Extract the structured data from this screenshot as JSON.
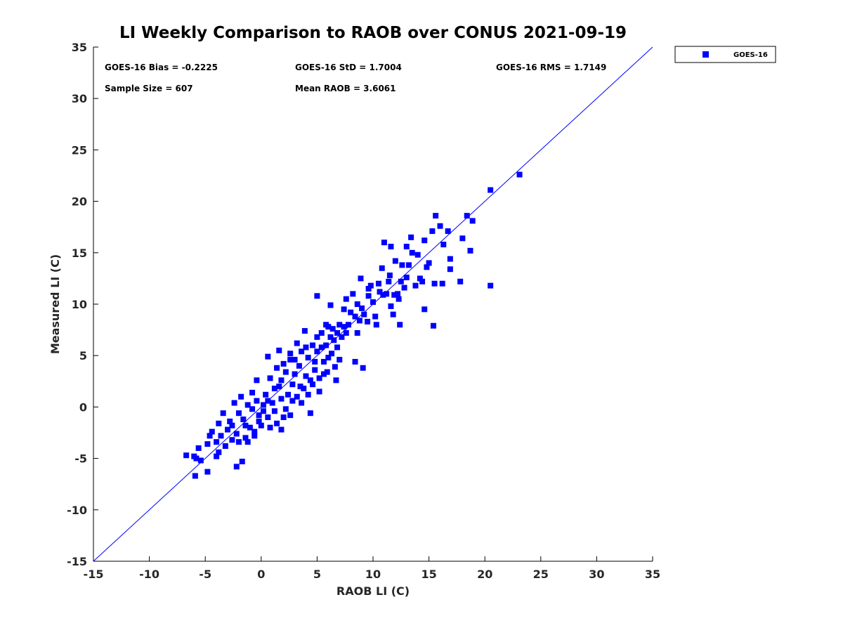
{
  "chart_data": {
    "type": "scatter",
    "title": "LI Weekly Comparison to RAOB over CONUS 2021-09-19",
    "xlabel": "RAOB LI (C)",
    "ylabel": "Measured LI (C)",
    "xlim": [
      -15,
      35
    ],
    "ylim": [
      -15,
      35
    ],
    "xticks": [
      -15,
      -10,
      -5,
      0,
      5,
      10,
      15,
      20,
      25,
      30,
      35
    ],
    "yticks": [
      -15,
      -10,
      -5,
      0,
      5,
      10,
      15,
      20,
      25,
      30,
      35
    ],
    "grid": false,
    "legend": {
      "position": "outside-top-right",
      "entries": [
        "GOES-16"
      ]
    },
    "reference_line": "y = x",
    "colors": {
      "series": "#0000ff",
      "line": "#0000ff",
      "axis": "#000000"
    },
    "stats": [
      "GOES-16 Bias = -0.2225",
      "GOES-16 StD = 1.7004",
      "GOES-16 RMS = 1.7149",
      "Sample Size = 607",
      "Mean RAOB = 3.6061"
    ],
    "series": [
      {
        "name": "GOES-16",
        "note": "approximate subset of 607 points",
        "points": [
          [
            23.1,
            22.6
          ],
          [
            20.5,
            21.1
          ],
          [
            20.5,
            11.8
          ],
          [
            18.4,
            18.6
          ],
          [
            18.9,
            18.1
          ],
          [
            18.7,
            15.2
          ],
          [
            18.0,
            16.4
          ],
          [
            17.8,
            12.2
          ],
          [
            15.6,
            18.6
          ],
          [
            16.0,
            17.6
          ],
          [
            16.7,
            17.1
          ],
          [
            16.3,
            15.8
          ],
          [
            16.9,
            14.4
          ],
          [
            16.9,
            13.4
          ],
          [
            16.2,
            12.0
          ],
          [
            15.4,
            7.9
          ],
          [
            14.6,
            9.5
          ],
          [
            14.6,
            16.2
          ],
          [
            15.3,
            17.1
          ],
          [
            13.4,
            16.5
          ],
          [
            11.0,
            16.0
          ],
          [
            11.6,
            15.6
          ],
          [
            13.0,
            15.6
          ],
          [
            11.6,
            9.8
          ],
          [
            12.4,
            8.0
          ],
          [
            10.3,
            8.0
          ],
          [
            9.1,
            3.8
          ],
          [
            8.4,
            4.4
          ],
          [
            6.7,
            2.6
          ],
          [
            5.0,
            10.8
          ],
          [
            6.2,
            9.9
          ],
          [
            0.6,
            4.9
          ],
          [
            -1.7,
            -5.3
          ],
          [
            -2.2,
            -5.8
          ],
          [
            -4.8,
            -6.3
          ],
          [
            -5.9,
            -6.7
          ],
          [
            -6.7,
            -4.7
          ],
          [
            4.4,
            -0.6
          ],
          [
            15.0,
            14.0
          ],
          [
            14.2,
            12.5
          ],
          [
            15.5,
            12.0
          ],
          [
            14.8,
            13.6
          ],
          [
            13.2,
            13.8
          ],
          [
            12.5,
            12.2
          ],
          [
            13.8,
            11.8
          ],
          [
            12.0,
            14.2
          ],
          [
            11.2,
            11.0
          ],
          [
            12.3,
            10.5
          ],
          [
            11.8,
            9.0
          ],
          [
            10.5,
            12.0
          ],
          [
            10.8,
            13.5
          ],
          [
            9.6,
            11.5
          ],
          [
            10.0,
            10.2
          ],
          [
            9.2,
            9.0
          ],
          [
            8.6,
            10.0
          ],
          [
            8.0,
            9.2
          ],
          [
            8.8,
            8.4
          ],
          [
            7.4,
            9.5
          ],
          [
            8.2,
            11.0
          ],
          [
            9.8,
            11.8
          ],
          [
            11.5,
            12.8
          ],
          [
            12.8,
            11.6
          ],
          [
            13.5,
            15.0
          ],
          [
            14.0,
            14.8
          ],
          [
            10.9,
            10.9
          ],
          [
            11.9,
            10.9
          ],
          [
            12.2,
            11.0
          ],
          [
            10.2,
            8.8
          ],
          [
            9.5,
            8.3
          ],
          [
            8.9,
            12.5
          ],
          [
            7.6,
            10.5
          ],
          [
            7.0,
            8.0
          ],
          [
            7.8,
            8.0
          ],
          [
            6.8,
            7.2
          ],
          [
            6.0,
            7.8
          ],
          [
            6.5,
            6.5
          ],
          [
            5.8,
            6.0
          ],
          [
            5.4,
            7.2
          ],
          [
            6.3,
            5.2
          ],
          [
            7.2,
            6.8
          ],
          [
            5.0,
            5.4
          ],
          [
            5.6,
            4.4
          ],
          [
            4.6,
            6.0
          ],
          [
            4.2,
            4.8
          ],
          [
            4.8,
            3.6
          ],
          [
            3.6,
            5.4
          ],
          [
            3.4,
            4.0
          ],
          [
            4.0,
            3.0
          ],
          [
            3.0,
            3.2
          ],
          [
            2.6,
            4.6
          ],
          [
            2.2,
            3.4
          ],
          [
            2.8,
            2.2
          ],
          [
            3.5,
            2.0
          ],
          [
            4.2,
            1.2
          ],
          [
            3.8,
            1.8
          ],
          [
            2.4,
            1.2
          ],
          [
            1.8,
            2.6
          ],
          [
            1.4,
            3.8
          ],
          [
            1.6,
            5.5
          ],
          [
            2.6,
            5.2
          ],
          [
            3.2,
            6.2
          ],
          [
            3.9,
            7.4
          ],
          [
            5.2,
            2.8
          ],
          [
            5.9,
            3.4
          ],
          [
            6.6,
            3.9
          ],
          [
            5.2,
            1.5
          ],
          [
            4.6,
            2.2
          ],
          [
            1.2,
            1.8
          ],
          [
            0.8,
            2.8
          ],
          [
            0.4,
            1.2
          ],
          [
            1.0,
            0.4
          ],
          [
            1.8,
            0.8
          ],
          [
            2.2,
            -0.2
          ],
          [
            2.8,
            0.6
          ],
          [
            0.2,
            -0.4
          ],
          [
            -0.4,
            0.6
          ],
          [
            -0.8,
            1.4
          ],
          [
            -1.2,
            0.2
          ],
          [
            -0.2,
            -1.4
          ],
          [
            0.6,
            -1.0
          ],
          [
            1.4,
            -1.6
          ],
          [
            1.8,
            -2.2
          ],
          [
            2.0,
            -1.0
          ],
          [
            -1.6,
            -1.2
          ],
          [
            -1.0,
            -2.0
          ],
          [
            -2.0,
            -0.6
          ],
          [
            -2.4,
            0.4
          ],
          [
            -1.8,
            1.0
          ],
          [
            -2.8,
            -1.4
          ],
          [
            -3.0,
            -2.2
          ],
          [
            -2.2,
            -2.6
          ],
          [
            -1.4,
            -3.0
          ],
          [
            -0.6,
            -2.4
          ],
          [
            -3.4,
            -0.6
          ],
          [
            -3.6,
            -2.8
          ],
          [
            -4.0,
            -3.4
          ],
          [
            -3.2,
            -3.8
          ],
          [
            -2.6,
            -3.2
          ],
          [
            -4.4,
            -2.4
          ],
          [
            -4.8,
            -3.6
          ],
          [
            -4.6,
            -2.8
          ],
          [
            -3.8,
            -1.6
          ],
          [
            -5.6,
            -4.0
          ],
          [
            -5.8,
            -5.0
          ],
          [
            -6.0,
            -4.8
          ],
          [
            -5.4,
            -5.2
          ],
          [
            -4.0,
            -4.8
          ],
          [
            -3.8,
            -4.4
          ],
          [
            -2.0,
            -3.4
          ],
          [
            -1.2,
            -3.4
          ],
          [
            -0.6,
            -2.8
          ],
          [
            0.0,
            -1.8
          ],
          [
            0.8,
            -2.0
          ],
          [
            -0.8,
            -0.2
          ],
          [
            -0.4,
            2.6
          ],
          [
            0.6,
            0.6
          ],
          [
            1.2,
            -0.4
          ],
          [
            2.6,
            -0.8
          ],
          [
            3.2,
            1.0
          ],
          [
            3.6,
            0.4
          ],
          [
            4.4,
            2.6
          ],
          [
            5.6,
            3.2
          ],
          [
            6.2,
            6.8
          ],
          [
            6.8,
            5.8
          ],
          [
            7.4,
            7.8
          ],
          [
            4.8,
            4.4
          ],
          [
            4.0,
            5.8
          ],
          [
            3.0,
            4.6
          ],
          [
            2.0,
            4.2
          ],
          [
            1.6,
            2.0
          ],
          [
            0.2,
            0.2
          ],
          [
            -0.2,
            -0.8
          ],
          [
            -1.4,
            -1.8
          ],
          [
            -2.6,
            -1.8
          ],
          [
            5.4,
            5.8
          ],
          [
            5.0,
            6.8
          ],
          [
            6.0,
            4.8
          ],
          [
            7.0,
            4.6
          ],
          [
            6.4,
            7.6
          ],
          [
            5.8,
            8.0
          ],
          [
            7.6,
            7.2
          ],
          [
            8.4,
            8.8
          ],
          [
            9.0,
            9.6
          ],
          [
            8.6,
            7.2
          ],
          [
            9.6,
            10.8
          ],
          [
            10.6,
            11.2
          ],
          [
            11.4,
            12.2
          ],
          [
            12.6,
            13.8
          ],
          [
            13.0,
            12.6
          ],
          [
            14.4,
            12.2
          ]
        ]
      }
    ]
  }
}
